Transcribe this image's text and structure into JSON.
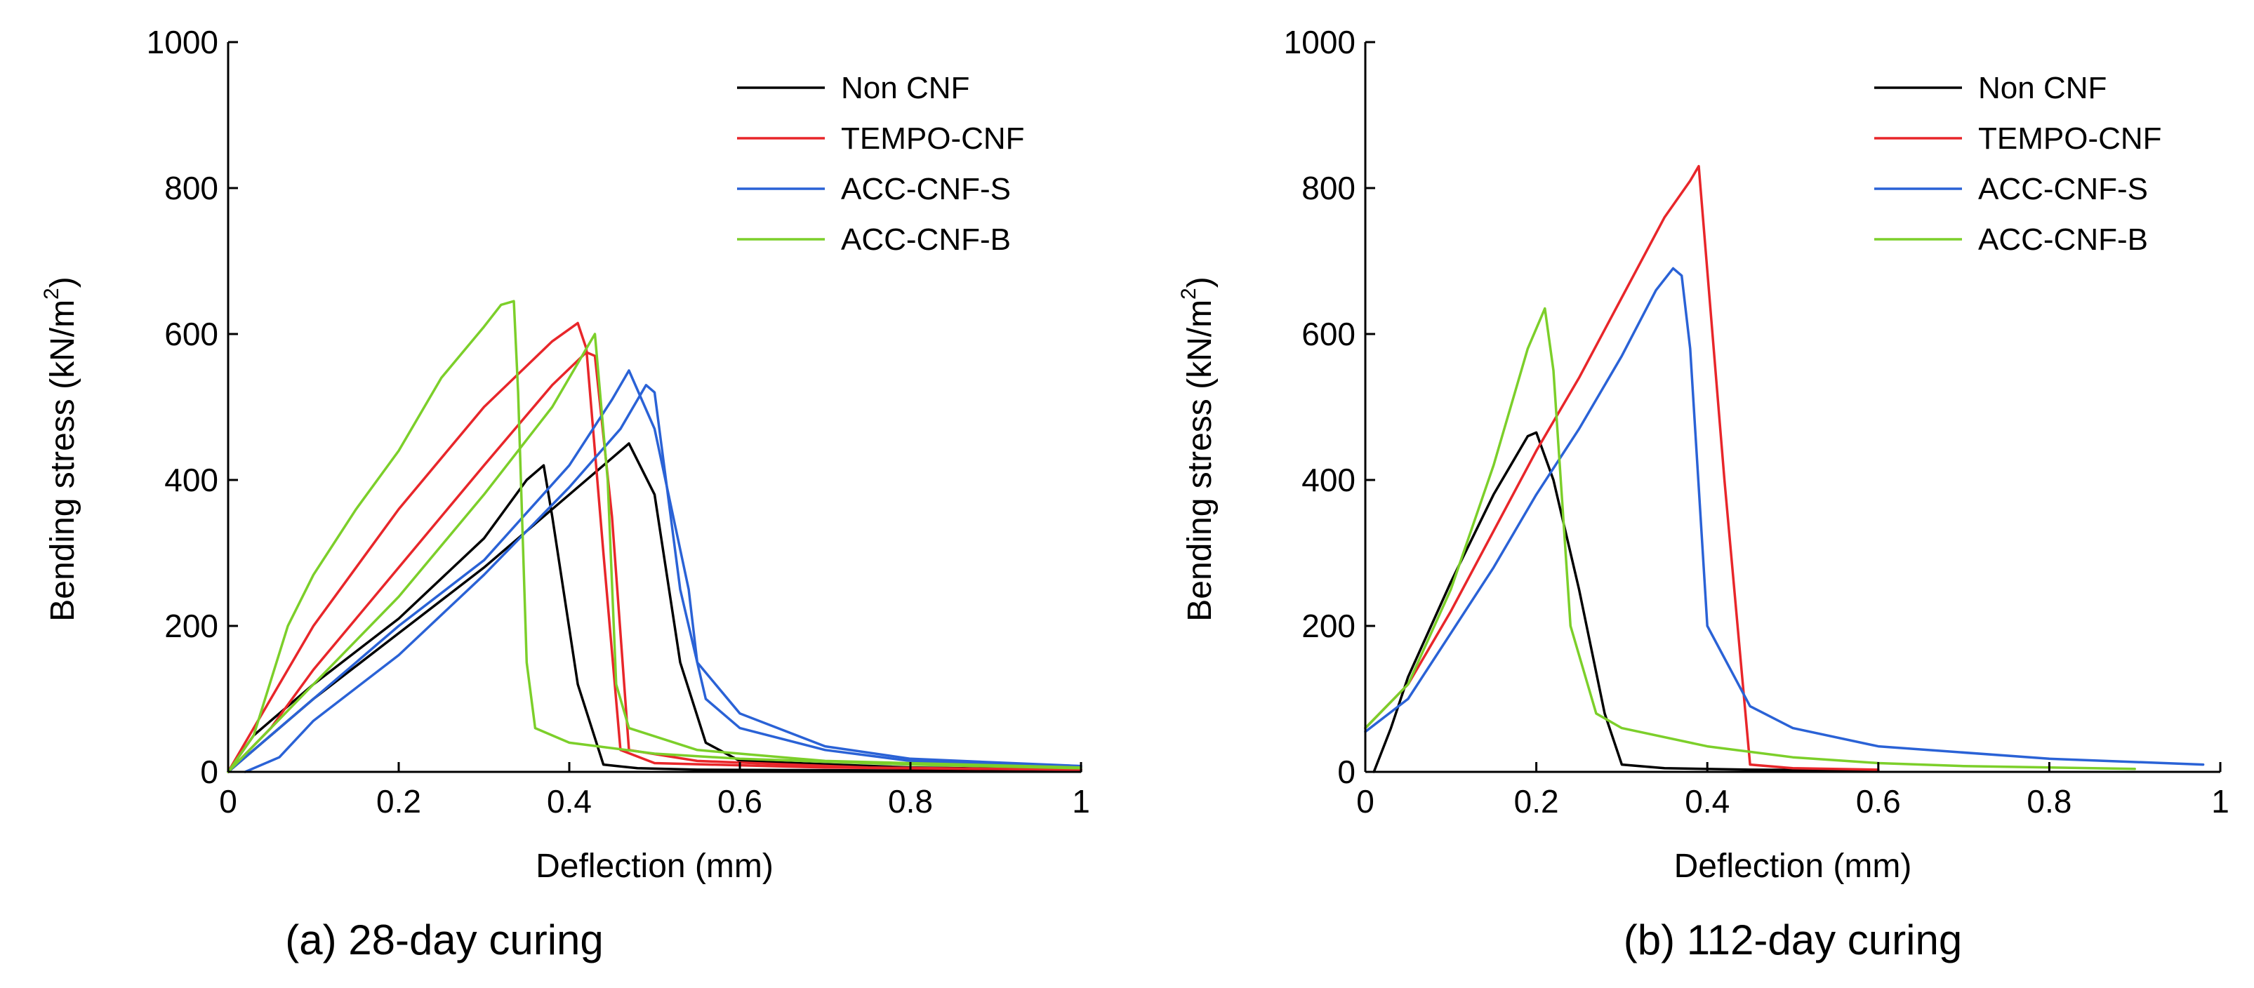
{
  "chart_data": [
    {
      "type": "line",
      "caption": "(a) 28-day curing",
      "xlabel": "Deflection (mm)",
      "ylabel": "Bending stress (kN/m",
      "ylabel_sup": "2",
      "ylabel_close": ")",
      "xlim": [
        0,
        1
      ],
      "ylim": [
        0,
        1000
      ],
      "xticks": [
        0,
        0.2,
        0.4,
        0.6,
        0.8,
        1
      ],
      "xtick_labels": [
        "0",
        "0.2",
        "0.4",
        "0.6",
        "0.8",
        "1"
      ],
      "yticks": [
        0,
        200,
        400,
        600,
        800,
        1000
      ],
      "ytick_labels": [
        "0",
        "200",
        "400",
        "600",
        "800",
        "1000"
      ],
      "grid": false,
      "legend_position": "top-right",
      "legend": [
        {
          "name": "Non CNF",
          "color": "#000000"
        },
        {
          "name": "TEMPO-CNF",
          "color": "#e8262a"
        },
        {
          "name": "ACC-CNF-S",
          "color": "#2a62d6"
        },
        {
          "name": "ACC-CNF-B",
          "color": "#7ccf2a"
        }
      ],
      "series": [
        {
          "name": "Non CNF",
          "color": "#000000",
          "x": [
            0,
            0.03,
            0.1,
            0.2,
            0.3,
            0.35,
            0.37,
            0.38,
            0.41,
            0.44,
            0.48,
            0.55,
            0.75,
            1.0
          ],
          "y": [
            0,
            50,
            120,
            210,
            320,
            400,
            420,
            350,
            120,
            10,
            5,
            3,
            2,
            1
          ]
        },
        {
          "name": "Non CNF",
          "color": "#000000",
          "x": [
            0,
            0.05,
            0.1,
            0.2,
            0.3,
            0.4,
            0.45,
            0.47,
            0.5,
            0.53,
            0.56,
            0.6,
            0.8,
            1.0
          ],
          "y": [
            0,
            50,
            100,
            190,
            280,
            380,
            430,
            450,
            380,
            150,
            40,
            15,
            6,
            3
          ]
        },
        {
          "name": "TEMPO-CNF",
          "color": "#e8262a",
          "x": [
            0,
            0.03,
            0.1,
            0.2,
            0.3,
            0.38,
            0.41,
            0.42,
            0.44,
            0.46,
            0.5,
            0.7,
            1.0
          ],
          "y": [
            0,
            60,
            200,
            360,
            500,
            590,
            615,
            580,
            300,
            30,
            12,
            6,
            3
          ]
        },
        {
          "name": "TEMPO-CNF",
          "color": "#e8262a",
          "x": [
            0,
            0.05,
            0.1,
            0.2,
            0.3,
            0.38,
            0.42,
            0.43,
            0.45,
            0.47,
            0.55,
            0.75,
            1.0
          ],
          "y": [
            0,
            60,
            140,
            280,
            420,
            530,
            575,
            570,
            350,
            30,
            15,
            6,
            3
          ]
        },
        {
          "name": "ACC-CNF-S",
          "color": "#2a62d6",
          "x": [
            0,
            0.03,
            0.1,
            0.2,
            0.3,
            0.4,
            0.45,
            0.47,
            0.5,
            0.54,
            0.55,
            0.6,
            0.7,
            0.8,
            1.0
          ],
          "y": [
            0,
            30,
            100,
            200,
            290,
            420,
            510,
            550,
            470,
            250,
            150,
            80,
            35,
            18,
            8
          ]
        },
        {
          "name": "ACC-CNF-S",
          "color": "#2a62d6",
          "x": [
            0.02,
            0.06,
            0.1,
            0.2,
            0.3,
            0.4,
            0.46,
            0.49,
            0.5,
            0.53,
            0.56,
            0.6,
            0.7,
            0.8,
            1.0
          ],
          "y": [
            0,
            20,
            70,
            160,
            270,
            390,
            470,
            530,
            520,
            250,
            100,
            60,
            30,
            15,
            8
          ]
        },
        {
          "name": "ACC-CNF-B",
          "color": "#7ccf2a",
          "x": [
            0,
            0.03,
            0.07,
            0.1,
            0.15,
            0.2,
            0.25,
            0.3,
            0.32,
            0.335,
            0.34,
            0.35,
            0.36,
            0.4,
            0.5,
            0.6,
            0.8,
            1.0
          ],
          "y": [
            0,
            50,
            200,
            270,
            360,
            440,
            540,
            610,
            640,
            645,
            520,
            150,
            60,
            40,
            25,
            18,
            10,
            5
          ]
        },
        {
          "name": "ACC-CNF-B",
          "color": "#7ccf2a",
          "x": [
            0,
            0.05,
            0.1,
            0.2,
            0.3,
            0.38,
            0.42,
            0.43,
            0.445,
            0.455,
            0.47,
            0.55,
            0.7,
            1.0
          ],
          "y": [
            0,
            60,
            120,
            240,
            380,
            500,
            580,
            600,
            400,
            120,
            60,
            30,
            15,
            6
          ]
        }
      ]
    },
    {
      "type": "line",
      "caption": "(b) 112-day curing",
      "xlabel": "Deflection (mm)",
      "ylabel": "Bending stress (kN/m",
      "ylabel_sup": "2",
      "ylabel_close": ")",
      "xlim": [
        0,
        1
      ],
      "ylim": [
        0,
        1000
      ],
      "xticks": [
        0,
        0.2,
        0.4,
        0.6,
        0.8,
        1
      ],
      "xtick_labels": [
        "0",
        "0.2",
        "0.4",
        "0.6",
        "0.8",
        "1"
      ],
      "yticks": [
        0,
        200,
        400,
        600,
        800,
        1000
      ],
      "ytick_labels": [
        "0",
        "200",
        "400",
        "600",
        "800",
        "1000"
      ],
      "grid": false,
      "legend_position": "top-right",
      "legend": [
        {
          "name": "Non CNF",
          "color": "#000000"
        },
        {
          "name": "TEMPO-CNF",
          "color": "#e8262a"
        },
        {
          "name": "ACC-CNF-S",
          "color": "#2a62d6"
        },
        {
          "name": "ACC-CNF-B",
          "color": "#7ccf2a"
        }
      ],
      "series": [
        {
          "name": "Non CNF",
          "color": "#000000",
          "x": [
            0.01,
            0.03,
            0.05,
            0.1,
            0.15,
            0.19,
            0.2,
            0.22,
            0.25,
            0.28,
            0.3,
            0.35,
            0.45,
            0.6
          ],
          "y": [
            0,
            60,
            130,
            260,
            380,
            460,
            465,
            400,
            250,
            80,
            10,
            5,
            3,
            2
          ]
        },
        {
          "name": "TEMPO-CNF",
          "color": "#e8262a",
          "x": [
            0,
            0.05,
            0.1,
            0.15,
            0.2,
            0.25,
            0.3,
            0.35,
            0.38,
            0.39,
            0.42,
            0.45,
            0.5,
            0.6
          ],
          "y": [
            60,
            120,
            220,
            330,
            440,
            540,
            650,
            760,
            810,
            830,
            400,
            10,
            5,
            3
          ]
        },
        {
          "name": "ACC-CNF-S",
          "color": "#2a62d6",
          "x": [
            0,
            0.05,
            0.1,
            0.15,
            0.2,
            0.25,
            0.3,
            0.34,
            0.36,
            0.37,
            0.38,
            0.4,
            0.45,
            0.5,
            0.6,
            0.8,
            0.98
          ],
          "y": [
            55,
            100,
            190,
            280,
            380,
            470,
            570,
            660,
            690,
            680,
            580,
            200,
            90,
            60,
            35,
            18,
            10
          ]
        },
        {
          "name": "ACC-CNF-B",
          "color": "#7ccf2a",
          "x": [
            0,
            0.05,
            0.1,
            0.15,
            0.19,
            0.21,
            0.22,
            0.24,
            0.27,
            0.3,
            0.4,
            0.5,
            0.6,
            0.7,
            0.9
          ],
          "y": [
            60,
            120,
            250,
            420,
            580,
            635,
            550,
            200,
            80,
            60,
            35,
            20,
            12,
            8,
            4
          ]
        }
      ]
    }
  ]
}
